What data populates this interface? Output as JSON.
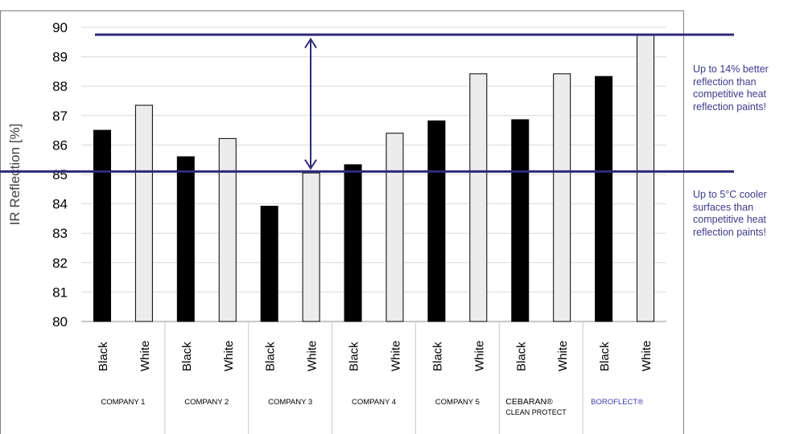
{
  "chart_data": {
    "type": "bar",
    "title": "",
    "xlabel": "",
    "ylabel": "IR Reflection [%]",
    "ylim": [
      80,
      90
    ],
    "yticks": [
      80,
      81,
      82,
      83,
      84,
      85,
      86,
      87,
      88,
      89,
      90
    ],
    "grid": true,
    "subcategories": [
      "Black",
      "White"
    ],
    "groups": [
      {
        "label": "COMPANY 1",
        "sublabel": "",
        "values": [
          86.5,
          87.35
        ]
      },
      {
        "label": "COMPANY 2",
        "sublabel": "",
        "values": [
          85.6,
          86.22
        ]
      },
      {
        "label": "COMPANY 3",
        "sublabel": "",
        "values": [
          83.92,
          85.05
        ]
      },
      {
        "label": "COMPANY 4",
        "sublabel": "",
        "values": [
          85.33,
          86.4
        ]
      },
      {
        "label": "COMPANY 5",
        "sublabel": "",
        "values": [
          86.82,
          88.42
        ]
      },
      {
        "label": "CEBARAN®",
        "sublabel": "CLEAN PROTECT",
        "values": [
          86.86,
          88.42
        ]
      },
      {
        "label": "BOROFLECT®",
        "sublabel": "",
        "values": [
          88.33,
          89.75
        ]
      }
    ],
    "reference_lines": [
      89.75,
      85.1
    ],
    "annotation_arrow": {
      "from": 89.6,
      "to": 85.2
    },
    "colors": {
      "black_bar": "#000000",
      "white_bar": "#ececec",
      "accent": "#2e2a7a",
      "highlight_label": "#3c37b0",
      "callout_text": "#3d3a8c"
    }
  },
  "callouts": {
    "top": "Up to 14% better reflection than competitive heat reflection paints!",
    "bottom": "Up to 5°C cooler surfaces than competitive heat reflection paints!"
  }
}
